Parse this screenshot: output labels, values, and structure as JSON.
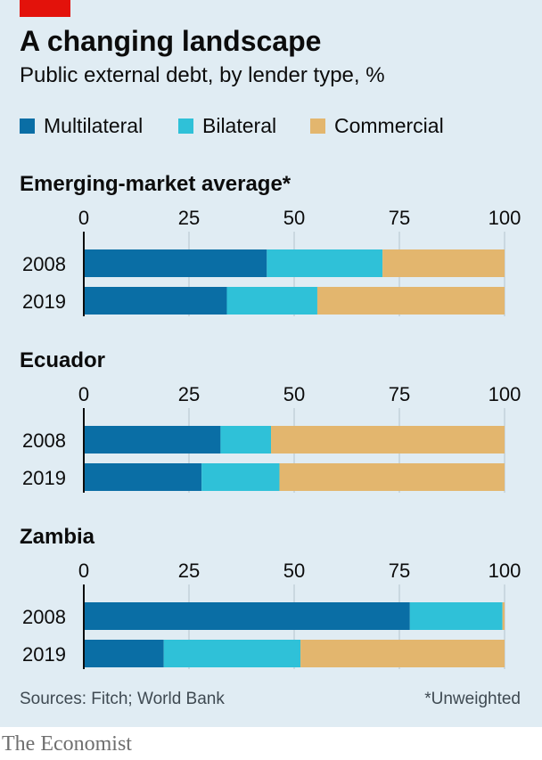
{
  "header": {
    "title": "A changing landscape",
    "subtitle": "Public external debt, by lender type, %"
  },
  "legend": [
    {
      "label": "Multilateral",
      "color": "#0a6ea5"
    },
    {
      "label": "Bilateral",
      "color": "#2fc1d8"
    },
    {
      "label": "Commercial",
      "color": "#e3b66e"
    }
  ],
  "colors": {
    "accent": "#e3120b",
    "background": "#e0ecf3"
  },
  "chart_data": [
    {
      "type": "bar",
      "orientation": "horizontal",
      "stacked": true,
      "title": "Emerging-market average*",
      "categories": [
        "2008",
        "2019"
      ],
      "series": [
        {
          "name": "Multilateral",
          "values": [
            43.5,
            34
          ]
        },
        {
          "name": "Bilateral",
          "values": [
            27.5,
            21.5
          ]
        },
        {
          "name": "Commercial",
          "values": [
            29,
            44.5
          ]
        }
      ],
      "xlim": [
        0,
        100
      ],
      "xticks": [
        "0",
        "25",
        "50",
        "75",
        "100"
      ]
    },
    {
      "type": "bar",
      "orientation": "horizontal",
      "stacked": true,
      "title": "Ecuador",
      "categories": [
        "2008",
        "2019"
      ],
      "series": [
        {
          "name": "Multilateral",
          "values": [
            32.5,
            28
          ]
        },
        {
          "name": "Bilateral",
          "values": [
            12,
            18.5
          ]
        },
        {
          "name": "Commercial",
          "values": [
            55.5,
            53.5
          ]
        }
      ],
      "xlim": [
        0,
        100
      ],
      "xticks": [
        "0",
        "25",
        "50",
        "75",
        "100"
      ]
    },
    {
      "type": "bar",
      "orientation": "horizontal",
      "stacked": true,
      "title": "Zambia",
      "categories": [
        "2008",
        "2019"
      ],
      "series": [
        {
          "name": "Multilateral",
          "values": [
            77.5,
            19
          ]
        },
        {
          "name": "Bilateral",
          "values": [
            22,
            32.5
          ]
        },
        {
          "name": "Commercial",
          "values": [
            0.5,
            48.5
          ]
        }
      ],
      "xlim": [
        0,
        100
      ],
      "xticks": [
        "0",
        "25",
        "50",
        "75",
        "100"
      ]
    }
  ],
  "footer": {
    "source": "Sources: Fitch; World Bank",
    "footnote": "*Unweighted",
    "brand": "The Economist"
  }
}
